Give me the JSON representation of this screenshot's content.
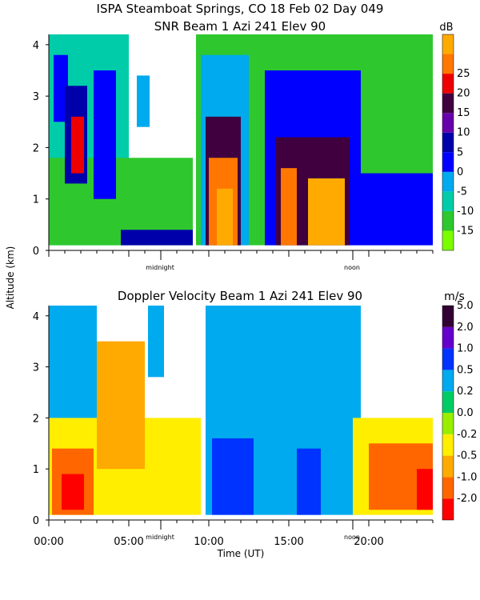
{
  "header": {
    "title_line1": "ISPA Steamboat Springs, CO   18 Feb 02 Day 049",
    "title_line2": "SNR Beam 1 Azi 241 Elev 90"
  },
  "shared": {
    "ylabel": "Altitude (km)",
    "xlabel": "Time (UT)",
    "x_ticks": [
      "00:00",
      "05:00",
      "10:00",
      "15:00",
      "20:00"
    ],
    "marker_midnight": "midnight",
    "marker_noon": "noon"
  },
  "colors": {
    "snr_scale": [
      "#7cfc00",
      "#2ec82e",
      "#00ccaa",
      "#00aaee",
      "#0000ff",
      "#0000aa",
      "#6600aa",
      "#400040",
      "#ee0000",
      "#ff7700",
      "#ffaa00"
    ],
    "vel_scale": [
      "#ff0000",
      "#ff6600",
      "#ffaa00",
      "#ffee00",
      "#99ee00",
      "#00cc66",
      "#00aaee",
      "#0033ff",
      "#6600cc",
      "#330033"
    ]
  },
  "chart_data": [
    {
      "type": "heatmap",
      "title": "SNR Beam 1 Azi 241 Elev 90",
      "xlabel": "",
      "ylabel": "Altitude (km)",
      "xlim_hours": [
        0,
        24
      ],
      "ylim_km": [
        0,
        4.2
      ],
      "y_ticks": [
        "0",
        "1",
        "2",
        "3",
        "4"
      ],
      "colorbar_unit": "dB",
      "colorbar_ticks": [
        "-15",
        "-10",
        "-5",
        "0",
        "5",
        "10",
        "15",
        "20",
        "25"
      ],
      "regions": [
        {
          "t0": 0.0,
          "t1": 5.0,
          "h0": 0.1,
          "h1": 4.2,
          "level": 2
        },
        {
          "t0": 0.0,
          "t1": 9.0,
          "h0": 0.1,
          "h1": 1.8,
          "level": 1
        },
        {
          "t0": 0.3,
          "t1": 1.2,
          "h0": 2.5,
          "h1": 3.8,
          "level": 4
        },
        {
          "t0": 1.0,
          "t1": 2.4,
          "h0": 1.3,
          "h1": 3.2,
          "level": 5
        },
        {
          "t0": 1.4,
          "t1": 2.2,
          "h0": 1.5,
          "h1": 2.6,
          "level": 8
        },
        {
          "t0": 2.8,
          "t1": 4.2,
          "h0": 1.0,
          "h1": 3.5,
          "level": 4
        },
        {
          "t0": 5.5,
          "t1": 6.3,
          "h0": 2.4,
          "h1": 3.4,
          "level": 3
        },
        {
          "t0": 9.2,
          "t1": 24.0,
          "h0": 0.1,
          "h1": 4.2,
          "level": 1
        },
        {
          "t0": 9.5,
          "t1": 12.5,
          "h0": 0.1,
          "h1": 3.8,
          "level": 3
        },
        {
          "t0": 9.8,
          "t1": 12.0,
          "h0": 0.1,
          "h1": 2.6,
          "level": 7
        },
        {
          "t0": 10.0,
          "t1": 11.8,
          "h0": 0.1,
          "h1": 1.8,
          "level": 9
        },
        {
          "t0": 10.5,
          "t1": 11.5,
          "h0": 0.1,
          "h1": 1.2,
          "level": 10
        },
        {
          "t0": 13.5,
          "t1": 19.5,
          "h0": 0.1,
          "h1": 3.5,
          "level": 4
        },
        {
          "t0": 14.2,
          "t1": 18.8,
          "h0": 0.1,
          "h1": 2.2,
          "level": 7
        },
        {
          "t0": 14.5,
          "t1": 15.5,
          "h0": 0.1,
          "h1": 1.6,
          "level": 9
        },
        {
          "t0": 16.2,
          "t1": 18.5,
          "h0": 0.1,
          "h1": 1.4,
          "level": 10
        },
        {
          "t0": 19.5,
          "t1": 24.0,
          "h0": 0.1,
          "h1": 1.5,
          "level": 4
        },
        {
          "t0": 4.5,
          "t1": 9.0,
          "h0": 0.1,
          "h1": 0.4,
          "level": 5
        }
      ]
    },
    {
      "type": "heatmap",
      "title": "Doppler Velocity Beam 1 Azi 241 Elev 90",
      "xlabel": "Time (UT)",
      "ylabel": "Altitude (km)",
      "xlim_hours": [
        0,
        24
      ],
      "ylim_km": [
        0,
        4.2
      ],
      "y_ticks": [
        "0",
        "1",
        "2",
        "3",
        "4"
      ],
      "colorbar_unit": "m/s",
      "colorbar_ticks": [
        "-2.0",
        "-1.0",
        "-0.5",
        "-0.2",
        "0.0",
        "0.2",
        "0.5",
        "1.0",
        "2.0",
        "5.0"
      ],
      "regions": [
        {
          "t0": 0.0,
          "t1": 9.5,
          "h0": 0.1,
          "h1": 2.0,
          "level": 3
        },
        {
          "t0": 0.0,
          "t1": 3.0,
          "h0": 2.0,
          "h1": 4.2,
          "level": 6
        },
        {
          "t0": 0.2,
          "t1": 2.8,
          "h0": 0.1,
          "h1": 1.4,
          "level": 1
        },
        {
          "t0": 0.8,
          "t1": 2.2,
          "h0": 0.2,
          "h1": 0.9,
          "level": 0
        },
        {
          "t0": 3.0,
          "t1": 6.0,
          "h0": 1.0,
          "h1": 3.5,
          "level": 2
        },
        {
          "t0": 6.2,
          "t1": 7.2,
          "h0": 2.8,
          "h1": 4.2,
          "level": 6
        },
        {
          "t0": 9.8,
          "t1": 19.5,
          "h0": 0.1,
          "h1": 4.2,
          "level": 6
        },
        {
          "t0": 10.2,
          "t1": 12.8,
          "h0": 0.1,
          "h1": 1.6,
          "level": 7
        },
        {
          "t0": 15.5,
          "t1": 17.0,
          "h0": 0.1,
          "h1": 1.4,
          "level": 7
        },
        {
          "t0": 19.0,
          "t1": 24.0,
          "h0": 0.1,
          "h1": 2.0,
          "level": 3
        },
        {
          "t0": 20.0,
          "t1": 24.0,
          "h0": 0.2,
          "h1": 1.5,
          "level": 1
        },
        {
          "t0": 23.0,
          "t1": 24.0,
          "h0": 0.2,
          "h1": 1.0,
          "level": 0
        }
      ]
    }
  ]
}
